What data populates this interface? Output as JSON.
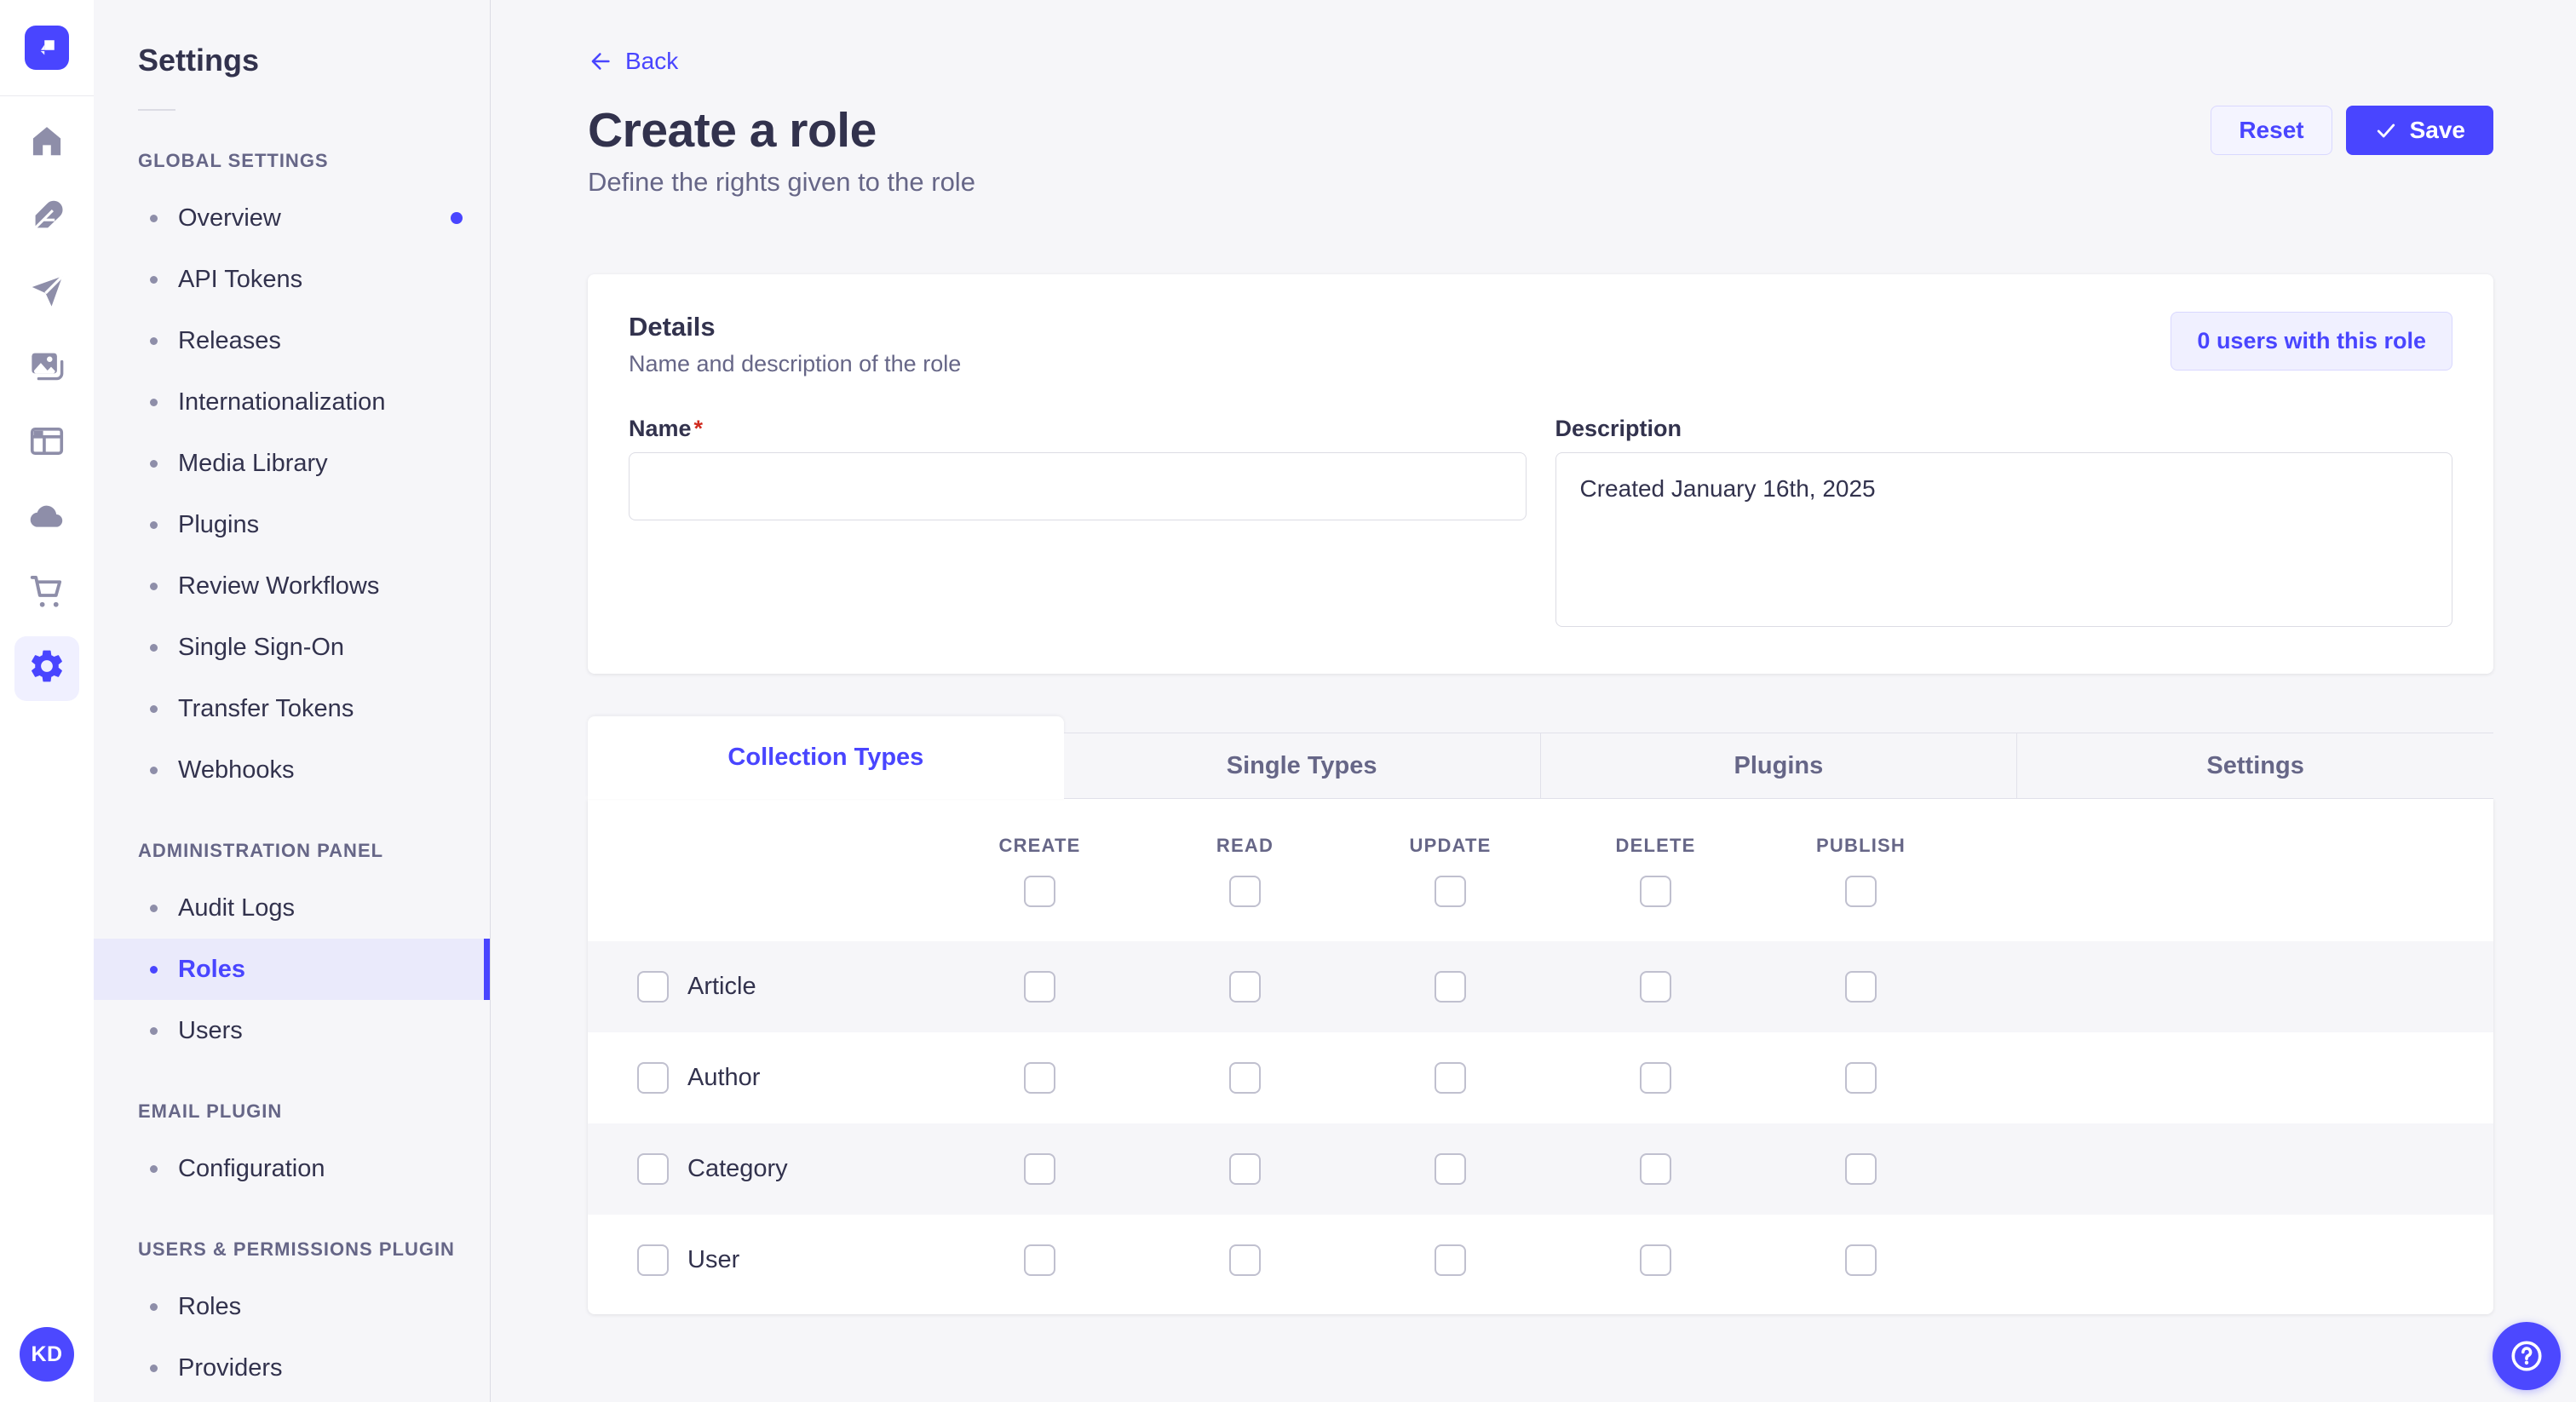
{
  "colors": {
    "primary": "#4945FF",
    "primary_light_bg": "#F0F0FF",
    "primary_border": "#D9D8FF",
    "page_bg": "#F6F6F9",
    "card_bg": "#FFFFFF",
    "border": "#DCDCE4",
    "text_dark": "#32324D",
    "text_muted": "#666687",
    "required_red": "#D02B20"
  },
  "rail": {
    "logo_icon": "strapi-logo-icon",
    "icons": [
      {
        "name": "home",
        "active": false
      },
      {
        "name": "feather",
        "active": false
      },
      {
        "name": "paper-plane",
        "active": false
      },
      {
        "name": "media-images",
        "active": false
      },
      {
        "name": "layout",
        "active": false
      },
      {
        "name": "cloud",
        "active": false
      },
      {
        "name": "shopping-cart",
        "active": false
      },
      {
        "name": "gear",
        "active": true
      }
    ],
    "avatar_initials": "KD"
  },
  "sidebar": {
    "title": "Settings",
    "sections": [
      {
        "label": "GLOBAL SETTINGS",
        "items": [
          {
            "label": "Overview",
            "notification": true
          },
          {
            "label": "API Tokens"
          },
          {
            "label": "Releases"
          },
          {
            "label": "Internationalization"
          },
          {
            "label": "Media Library"
          },
          {
            "label": "Plugins"
          },
          {
            "label": "Review Workflows"
          },
          {
            "label": "Single Sign-On"
          },
          {
            "label": "Transfer Tokens"
          },
          {
            "label": "Webhooks"
          }
        ]
      },
      {
        "label": "ADMINISTRATION PANEL",
        "items": [
          {
            "label": "Audit Logs"
          },
          {
            "label": "Roles",
            "active": true
          },
          {
            "label": "Users"
          }
        ]
      },
      {
        "label": "EMAIL PLUGIN",
        "items": [
          {
            "label": "Configuration"
          }
        ]
      },
      {
        "label": "USERS & PERMISSIONS PLUGIN",
        "items": [
          {
            "label": "Roles"
          },
          {
            "label": "Providers"
          }
        ]
      }
    ]
  },
  "header": {
    "back_label": "Back",
    "title": "Create a role",
    "subtitle": "Define the rights given to the role",
    "reset_label": "Reset",
    "save_label": "Save"
  },
  "details": {
    "title": "Details",
    "subtitle": "Name and description of the role",
    "users_badge": "0 users with this role",
    "name_label": "Name",
    "required_mark": "*",
    "name_value": "",
    "description_label": "Description",
    "description_value": "Created January 16th, 2025"
  },
  "permissions": {
    "tabs": [
      {
        "label": "Collection Types",
        "active": true
      },
      {
        "label": "Single Types",
        "active": false
      },
      {
        "label": "Plugins",
        "active": false
      },
      {
        "label": "Settings",
        "active": false
      }
    ],
    "columns": [
      "CREATE",
      "READ",
      "UPDATE",
      "DELETE",
      "PUBLISH"
    ],
    "rows": [
      {
        "label": "Article",
        "row_checked": false,
        "checked": [
          false,
          false,
          false,
          false,
          false
        ]
      },
      {
        "label": "Author",
        "row_checked": false,
        "checked": [
          false,
          false,
          false,
          false,
          false
        ]
      },
      {
        "label": "Category",
        "row_checked": false,
        "checked": [
          false,
          false,
          false,
          false,
          false
        ]
      },
      {
        "label": "User",
        "row_checked": false,
        "checked": [
          false,
          false,
          false,
          false,
          false
        ]
      }
    ]
  },
  "help": {
    "icon": "question-circle-icon"
  }
}
